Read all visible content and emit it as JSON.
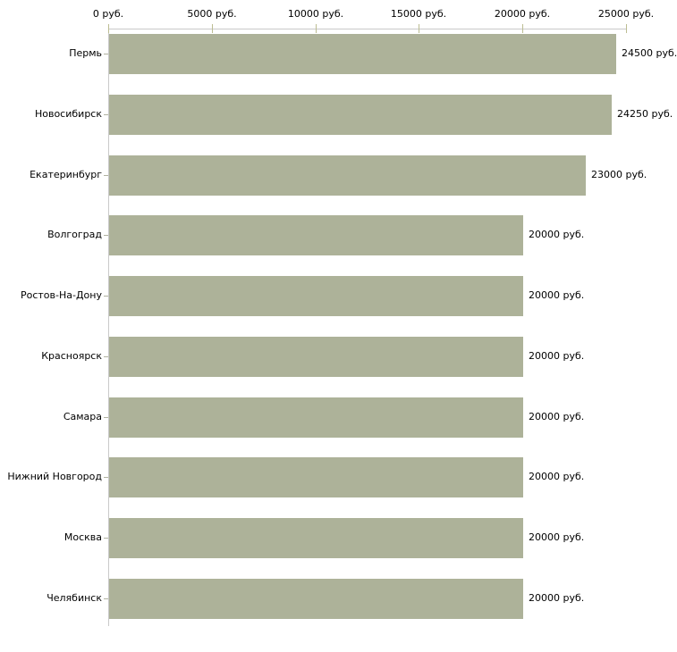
{
  "chart_data": {
    "type": "bar",
    "orientation": "horizontal",
    "title": "",
    "categories": [
      "Пермь",
      "Новосибирск",
      "Екатеринбург",
      "Волгоград",
      "Ростов-На-Дону",
      "Красноярск",
      "Самара",
      "Нижний Новгород",
      "Москва",
      "Челябинск"
    ],
    "values": [
      24500,
      24250,
      23000,
      20000,
      20000,
      20000,
      20000,
      20000,
      20000,
      20000
    ],
    "value_labels": [
      "24500 руб.",
      "24250 руб.",
      "23000 руб.",
      "20000 руб.",
      "20000 руб.",
      "20000 руб.",
      "20000 руб.",
      "20000 руб.",
      "20000 руб.",
      "20000 руб."
    ],
    "xlabel": "",
    "ylabel": "",
    "x_axis": {
      "position": "top",
      "xlim": [
        0,
        25000
      ],
      "tick_values": [
        0,
        5000,
        10000,
        15000,
        20000,
        25000
      ],
      "tick_labels": [
        "0 руб.",
        "5000 руб.",
        "10000 руб.",
        "15000 руб.",
        "20000 руб.",
        "25000 руб."
      ]
    },
    "grid": false,
    "legend": "none",
    "colors": {
      "bar": "#adb299",
      "axis": "#c9c9c9",
      "axis_tick": "#bcbd92",
      "category_tick": "#b0b1a0",
      "text": "#000000",
      "background": "#ffffff"
    }
  }
}
